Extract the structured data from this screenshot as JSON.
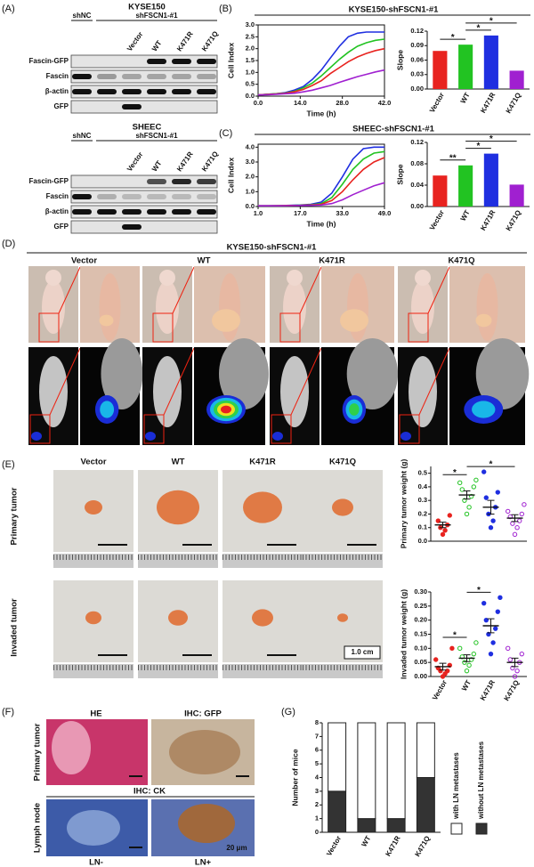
{
  "panel_labels": [
    "(A)",
    "(B)",
    "(C)",
    "(D)",
    "(E)",
    "(F)",
    "(G)"
  ],
  "blots": [
    {
      "title": "KYSE150",
      "control": "shNC",
      "knockdown": "shFSCN1-#1",
      "lanes": [
        "Vector",
        "WT",
        "K471R",
        "K471Q"
      ],
      "rows": [
        "Fascin-GFP",
        "Fascin",
        "β-actin",
        "GFP"
      ]
    },
    {
      "title": "SHEEC",
      "control": "shNC",
      "knockdown": "shFSCN1-#1",
      "lanes": [
        "Vector",
        "WT",
        "K471R",
        "K471Q"
      ],
      "rows": [
        "Fascin-GFP",
        "Fascin",
        "β-actin",
        "GFP"
      ]
    }
  ],
  "chart_data": [
    {
      "type": "line",
      "title": "KYSE150-shFSCN1-#1",
      "xlabel": "Time (h)",
      "ylabel": "Cell Index",
      "x": [
        0,
        3,
        6,
        9,
        12,
        15,
        18,
        21,
        24,
        27,
        30,
        33,
        36,
        39,
        42
      ],
      "xlim": [
        0,
        42
      ],
      "xticks": [
        {
          "value": 0,
          "label": "0.0"
        },
        {
          "value": 14,
          "label": "14.0"
        },
        {
          "value": 28,
          "label": "28.0"
        },
        {
          "value": 42,
          "label": "42.0"
        }
      ],
      "ylim": [
        0,
        3
      ],
      "yticks": [
        {
          "value": 0,
          "label": "0.0"
        },
        0.5,
        {
          "value": 1,
          "label": "1.0"
        },
        1.5,
        {
          "value": 2,
          "label": "2.0"
        },
        2.5,
        {
          "value": 3,
          "label": "3.0"
        }
      ],
      "series": [
        {
          "color": "#1f2fe0",
          "values": [
            0.05,
            0.08,
            0.1,
            0.15,
            0.25,
            0.4,
            0.7,
            1.1,
            1.6,
            2.1,
            2.5,
            2.65,
            2.7,
            2.7,
            2.7
          ]
        },
        {
          "color": "#22c322",
          "values": [
            0.05,
            0.08,
            0.1,
            0.13,
            0.2,
            0.35,
            0.55,
            0.85,
            1.2,
            1.55,
            1.85,
            2.1,
            2.25,
            2.35,
            2.4
          ]
        },
        {
          "color": "#e8231f",
          "values": [
            0.05,
            0.07,
            0.09,
            0.12,
            0.18,
            0.28,
            0.45,
            0.65,
            0.95,
            1.2,
            1.45,
            1.65,
            1.8,
            1.92,
            2.0
          ]
        },
        {
          "color": "#a020d0",
          "values": [
            0.05,
            0.06,
            0.08,
            0.1,
            0.12,
            0.18,
            0.25,
            0.35,
            0.45,
            0.58,
            0.7,
            0.82,
            0.92,
            1.02,
            1.1
          ]
        }
      ]
    },
    {
      "type": "bar",
      "ylabel": "Slope",
      "categories": [
        "Vector",
        "WT",
        "K471R",
        "K471Q"
      ],
      "values": [
        0.079,
        0.092,
        0.111,
        0.038
      ],
      "colors": [
        "#e8231f",
        "#22c322",
        "#1f2fe0",
        "#a020d0"
      ],
      "ylim": [
        0,
        0.12
      ],
      "yticks": [
        {
          "value": 0,
          "label": "0.00"
        },
        0.03,
        0.06,
        0.09,
        0.12
      ],
      "annotations": [
        {
          "label": "*",
          "pair": [
            0,
            1
          ]
        },
        {
          "label": "*",
          "pair": [
            1,
            2
          ]
        },
        {
          "label": "*",
          "pair": [
            1,
            3
          ]
        }
      ]
    },
    {
      "type": "line",
      "title": "SHEEC-shFSCN1-#1",
      "xlabel": "Time (h)",
      "ylabel": "Cell Index",
      "x": [
        1,
        5,
        9,
        13,
        17,
        21,
        25,
        29,
        33,
        37,
        41,
        45,
        49
      ],
      "xlim": [
        1,
        49
      ],
      "xticks": [
        {
          "value": 1,
          "label": "1.0"
        },
        {
          "value": 17,
          "label": "17.0"
        },
        {
          "value": 33,
          "label": "33.0"
        },
        {
          "value": 49,
          "label": "49.0"
        }
      ],
      "ylim": [
        0,
        4.2
      ],
      "yticks": [
        {
          "value": 0,
          "label": "0.0"
        },
        {
          "value": 1,
          "label": "1.0"
        },
        {
          "value": 2,
          "label": "2.0"
        },
        {
          "value": 3,
          "label": "3.0"
        },
        {
          "value": 4,
          "label": "4.0"
        }
      ],
      "series": [
        {
          "color": "#1f2fe0",
          "values": [
            0.05,
            0.05,
            0.06,
            0.08,
            0.1,
            0.15,
            0.3,
            0.9,
            2.0,
            3.2,
            3.9,
            4.0,
            4.0
          ]
        },
        {
          "color": "#22c322",
          "values": [
            0.05,
            0.05,
            0.06,
            0.07,
            0.09,
            0.12,
            0.2,
            0.6,
            1.5,
            2.5,
            3.2,
            3.6,
            3.7
          ]
        },
        {
          "color": "#e8231f",
          "values": [
            0.05,
            0.05,
            0.06,
            0.07,
            0.08,
            0.1,
            0.15,
            0.4,
            1.0,
            1.8,
            2.5,
            3.0,
            3.3
          ]
        },
        {
          "color": "#a020d0",
          "values": [
            0.05,
            0.05,
            0.05,
            0.06,
            0.07,
            0.08,
            0.1,
            0.2,
            0.45,
            0.8,
            1.1,
            1.4,
            1.6
          ]
        }
      ]
    },
    {
      "type": "bar",
      "ylabel": "Slope",
      "categories": [
        "Vector",
        "WT",
        "K471R",
        "K471Q"
      ],
      "values": [
        0.058,
        0.077,
        0.099,
        0.041
      ],
      "colors": [
        "#e8231f",
        "#22c322",
        "#1f2fe0",
        "#a020d0"
      ],
      "ylim": [
        0,
        0.12
      ],
      "yticks": [
        {
          "value": 0,
          "label": "0.00"
        },
        0.04,
        0.08,
        0.12
      ],
      "annotations": [
        {
          "label": "**",
          "pair": [
            0,
            1
          ]
        },
        {
          "label": "*",
          "pair": [
            1,
            2
          ]
        },
        {
          "label": "*",
          "pair": [
            1,
            3
          ]
        }
      ]
    },
    {
      "type": "dot",
      "ylabel": "Primary tumor weight (g)",
      "colors": [
        "#e8231f",
        "#22c322",
        "#1f2fe0",
        "#a020d0"
      ],
      "values": [
        [
          0.05,
          0.08,
          0.1,
          0.12,
          0.15,
          0.19
        ],
        [
          0.2,
          0.25,
          0.3,
          0.33,
          0.38,
          0.4,
          0.43,
          0.45
        ],
        [
          0.1,
          0.15,
          0.2,
          0.25,
          0.32,
          0.36,
          0.51
        ],
        [
          0.05,
          0.1,
          0.13,
          0.15,
          0.18,
          0.2,
          0.22,
          0.27
        ]
      ],
      "means": [
        0.12,
        0.34,
        0.25,
        0.17
      ],
      "errors": [
        0.02,
        0.03,
        0.05,
        0.025
      ],
      "ylim": [
        0,
        0.55
      ],
      "yticks": [
        {
          "value": 0,
          "label": "0.0"
        },
        0.1,
        0.2,
        0.3,
        0.4,
        0.5
      ],
      "annotations": [
        {
          "label": "*",
          "pair": [
            0,
            1
          ]
        },
        {
          "label": "*",
          "pair": [
            1,
            3
          ]
        }
      ]
    },
    {
      "type": "dot",
      "ylabel": "Invaded tumor weight (g)",
      "categories": [
        "Vector",
        "WT",
        "K471R",
        "K471Q"
      ],
      "colors": [
        "#e8231f",
        "#22c322",
        "#1f2fe0",
        "#a020d0"
      ],
      "values": [
        [
          0.0,
          0.01,
          0.02,
          0.02,
          0.03,
          0.04,
          0.06,
          0.1
        ],
        [
          0.02,
          0.04,
          0.05,
          0.06,
          0.07,
          0.08,
          0.1,
          0.12
        ],
        [
          0.08,
          0.12,
          0.15,
          0.17,
          0.2,
          0.23,
          0.26,
          0.28
        ],
        [
          0.0,
          0.02,
          0.03,
          0.05,
          0.06,
          0.08,
          0.1
        ]
      ],
      "means": [
        0.035,
        0.065,
        0.18,
        0.05
      ],
      "errors": [
        0.012,
        0.012,
        0.025,
        0.015
      ],
      "ylim": [
        0,
        0.3
      ],
      "yticks": [
        {
          "value": 0,
          "label": "0.00"
        },
        0.05,
        {
          "value": 0.1,
          "label": "0.10"
        },
        0.15,
        {
          "value": 0.2,
          "label": "0.20"
        },
        0.25,
        {
          "value": 0.3,
          "label": "0.30"
        }
      ],
      "annotations": [
        {
          "label": "*",
          "pair": [
            0,
            1
          ]
        },
        {
          "label": "*",
          "pair": [
            1,
            2
          ]
        }
      ]
    },
    {
      "type": "stacked_bar",
      "ylabel": "Number of mice",
      "categories": [
        "Vector",
        "WT",
        "K471R",
        "K471Q"
      ],
      "series": [
        {
          "name": "with LN metastases",
          "color": "#ffffff",
          "values": [
            5,
            7,
            7,
            4
          ]
        },
        {
          "name": "without LN metastases",
          "color": "#333333",
          "values": [
            3,
            1,
            1,
            4
          ]
        }
      ],
      "ylim": [
        0,
        8
      ],
      "yticks": [
        0,
        1,
        2,
        3,
        4,
        5,
        6,
        7,
        8
      ]
    }
  ],
  "mice": {
    "title": "KYSE150-shFSCN1-#1",
    "groups": [
      "Vector",
      "WT",
      "K471R",
      "K471Q"
    ]
  },
  "tumors": {
    "groups": [
      "Vector",
      "WT",
      "K471R",
      "K471Q"
    ],
    "rows": [
      "Primary tumor",
      "Invaded tumor"
    ],
    "scale_bar": "1.0 cm"
  },
  "histology": {
    "he": "HE",
    "ihc_gfp": "IHC: GFP",
    "row_primary": "Primary tumor",
    "ihc_ck": "IHC: CK",
    "row_lymph": "Lymph node",
    "ln_neg": "LN-",
    "ln_pos": "LN+",
    "scale_bar": "20 μm"
  }
}
